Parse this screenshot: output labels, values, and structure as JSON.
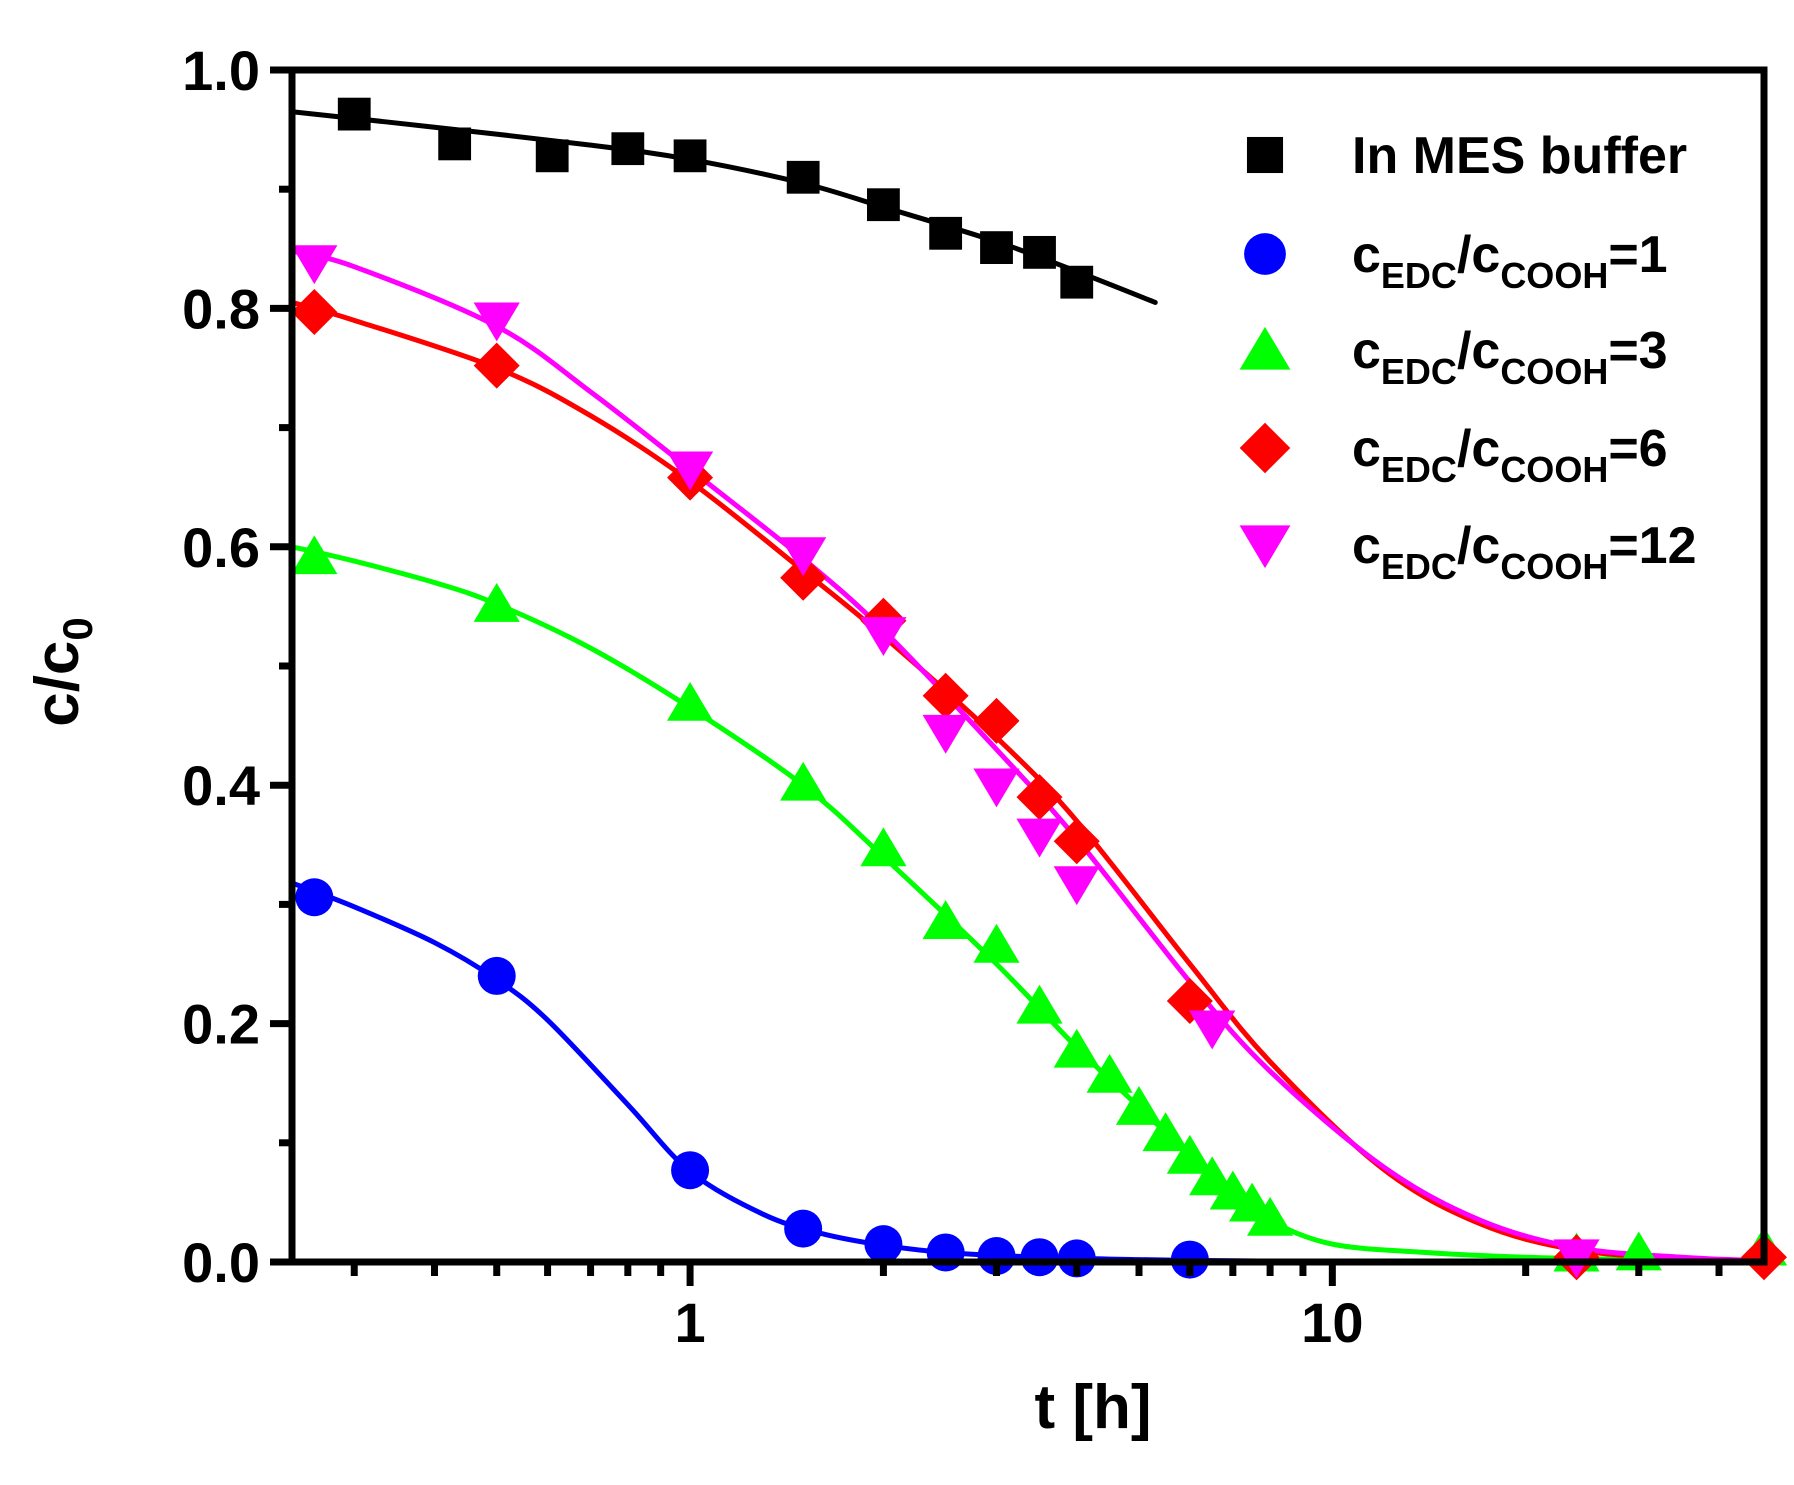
{
  "chart_data": {
    "type": "scatter",
    "xscale": "log",
    "xlim": [
      0.24,
      47
    ],
    "ylim": [
      0.0,
      1.0
    ],
    "xlabel": "t [h]",
    "ylabel": {
      "base": "c/c",
      "sub": "0"
    },
    "xticks": [
      {
        "value": 1,
        "label": "1"
      },
      {
        "value": 10,
        "label": "10"
      }
    ],
    "yticks": [
      {
        "value": 0.0,
        "label": "0.0"
      },
      {
        "value": 0.2,
        "label": "0.2"
      },
      {
        "value": 0.4,
        "label": "0.4"
      },
      {
        "value": 0.6,
        "label": "0.6"
      },
      {
        "value": 0.8,
        "label": "0.8"
      },
      {
        "value": 1.0,
        "label": "1.0"
      }
    ],
    "legend_position": "top-right",
    "series": [
      {
        "id": "mes",
        "name": "In MES buffer",
        "legend_label": {
          "plain": "In MES buffer"
        },
        "color": "#000000",
        "marker": "square",
        "x": [
          0.3,
          0.43,
          0.61,
          0.8,
          1.0,
          1.5,
          2.0,
          2.5,
          3.0,
          3.5,
          4.0
        ],
        "y": [
          0.963,
          0.938,
          0.928,
          0.934,
          0.928,
          0.91,
          0.887,
          0.863,
          0.851,
          0.847,
          0.822
        ],
        "fit_x": [
          0.24,
          0.4,
          0.7,
          1.0,
          1.5,
          2.0,
          3.0,
          4.0,
          5.3
        ],
        "fit_y": [
          0.965,
          0.952,
          0.937,
          0.925,
          0.905,
          0.885,
          0.856,
          0.831,
          0.805
        ]
      },
      {
        "id": "r1",
        "name": "cEDC/cCOOH=1",
        "legend_label": {
          "c1": "c",
          "s1": "EDC",
          "mid": "/c",
          "s2": "COOH",
          "tail": "=1"
        },
        "color": "#0000ff",
        "marker": "circle",
        "x": [
          0.26,
          0.5,
          1.0,
          1.5,
          2.0,
          2.5,
          3.0,
          3.5,
          4.0,
          6.0
        ],
        "y": [
          0.306,
          0.24,
          0.077,
          0.028,
          0.015,
          0.008,
          0.005,
          0.004,
          0.003,
          0.002
        ],
        "fit_x": [
          0.24,
          0.3,
          0.4,
          0.5,
          0.6,
          0.8,
          1.0,
          1.3,
          1.6,
          2.0,
          2.5,
          3.5,
          5.0,
          7.0,
          10.0,
          16.0
        ],
        "fit_y": [
          0.318,
          0.298,
          0.268,
          0.237,
          0.203,
          0.132,
          0.076,
          0.04,
          0.024,
          0.014,
          0.008,
          0.004,
          0.002,
          0.001,
          0.0005,
          0.0002
        ]
      },
      {
        "id": "r3",
        "name": "cEDC/cCOOH=3",
        "legend_label": {
          "c1": "c",
          "s1": "EDC",
          "mid": "/c",
          "s2": "COOH",
          "tail": "=3"
        },
        "color": "#00ff00",
        "marker": "triangle-up",
        "x": [
          0.26,
          0.5,
          1.0,
          1.5,
          2.0,
          2.5,
          3.0,
          3.5,
          4.0,
          4.5,
          5.0,
          5.5,
          6.0,
          6.5,
          7.0,
          7.5,
          8.0,
          24.0,
          30.0,
          47.0
        ],
        "y": [
          0.592,
          0.552,
          0.469,
          0.402,
          0.347,
          0.286,
          0.266,
          0.215,
          0.178,
          0.157,
          0.13,
          0.108,
          0.089,
          0.071,
          0.059,
          0.049,
          0.037,
          0.007,
          0.008,
          0.012
        ],
        "fit_x": [
          0.24,
          0.3,
          0.4,
          0.5,
          0.7,
          1.0,
          1.5,
          2.0,
          3.0,
          4.0,
          5.0,
          6.0,
          7.0,
          8.0,
          10.0,
          14.0,
          20.0,
          30.0,
          47.0
        ],
        "fit_y": [
          0.6,
          0.588,
          0.57,
          0.552,
          0.515,
          0.465,
          0.4,
          0.34,
          0.25,
          0.18,
          0.13,
          0.09,
          0.06,
          0.035,
          0.015,
          0.008,
          0.004,
          0.002,
          0.001
        ]
      },
      {
        "id": "r6",
        "name": "cEDC/cCOOH=6",
        "legend_label": {
          "c1": "c",
          "s1": "EDC",
          "mid": "/c",
          "s2": "COOH",
          "tail": "=6"
        },
        "color": "#ff0000",
        "marker": "diamond",
        "x": [
          0.26,
          0.5,
          1.0,
          1.5,
          2.0,
          2.5,
          3.0,
          3.5,
          4.0,
          6.0,
          24.0,
          47.0
        ],
        "y": [
          0.797,
          0.752,
          0.658,
          0.574,
          0.538,
          0.475,
          0.454,
          0.39,
          0.353,
          0.219,
          0.004,
          0.004
        ],
        "fit_x": [
          0.24,
          0.3,
          0.5,
          0.7,
          1.0,
          1.5,
          2.0,
          3.0,
          4.0,
          6.0,
          8.0,
          12.0,
          17.0,
          24.0,
          35.0,
          47.0
        ],
        "fit_y": [
          0.805,
          0.79,
          0.75,
          0.71,
          0.655,
          0.58,
          0.525,
          0.44,
          0.37,
          0.25,
          0.168,
          0.078,
          0.032,
          0.01,
          0.003,
          0.001
        ]
      },
      {
        "id": "r12",
        "name": "cEDC/cCOOH=12",
        "legend_label": {
          "c1": "c",
          "s1": "EDC",
          "mid": "/c",
          "s2": "COOH",
          "tail": "=12"
        },
        "color": "#ff00ff",
        "marker": "triangle-down",
        "x": [
          0.26,
          0.5,
          1.0,
          1.5,
          2.0,
          2.5,
          3.0,
          3.5,
          4.0,
          6.5,
          24.0
        ],
        "y": [
          0.838,
          0.79,
          0.665,
          0.593,
          0.526,
          0.444,
          0.399,
          0.357,
          0.317,
          0.196,
          0.004
        ],
        "fit_x": [
          0.24,
          0.3,
          0.5,
          0.7,
          1.0,
          1.5,
          2.0,
          3.0,
          4.0,
          6.0,
          8.0,
          12.0,
          17.0,
          24.0,
          35.0,
          47.0
        ],
        "fit_y": [
          0.848,
          0.835,
          0.785,
          0.73,
          0.665,
          0.59,
          0.53,
          0.43,
          0.355,
          0.235,
          0.16,
          0.08,
          0.035,
          0.012,
          0.004,
          0.001
        ]
      }
    ]
  }
}
